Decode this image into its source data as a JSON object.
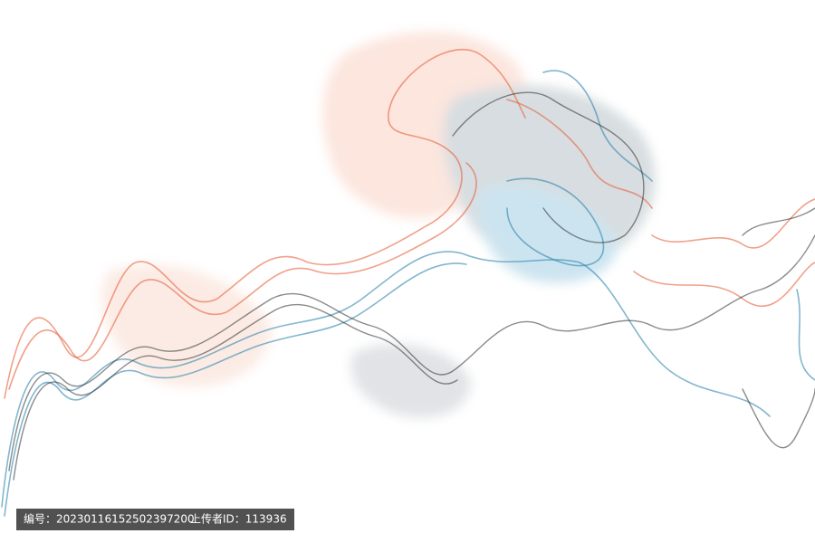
{
  "watermark": {
    "id_label": "编号：20230116152502397200",
    "uploader_label": "上传者ID：113936"
  }
}
